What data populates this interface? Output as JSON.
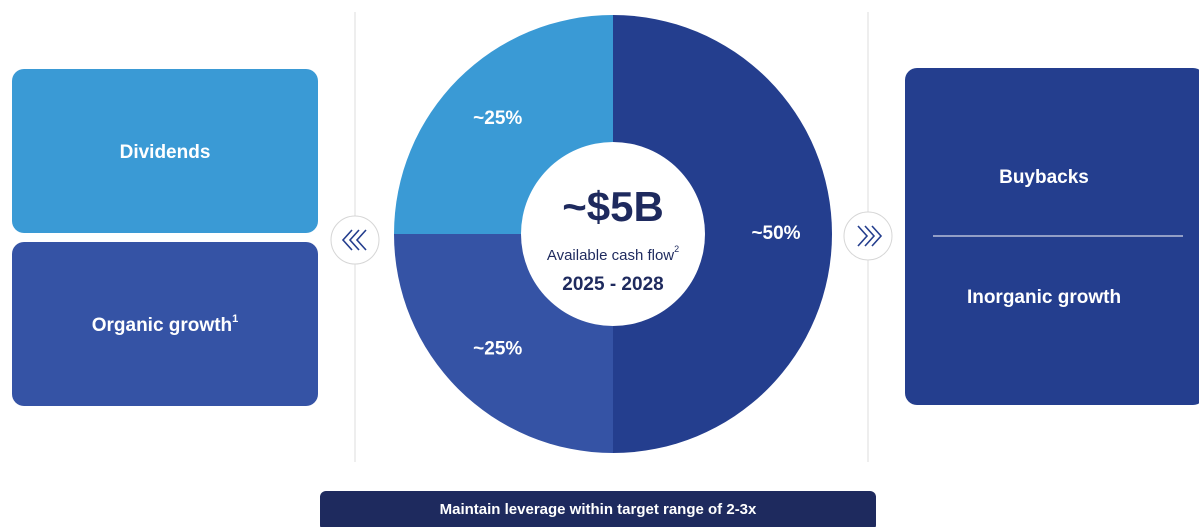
{
  "chart_data": {
    "type": "pie",
    "values": [
      50,
      25,
      25
    ],
    "value_labels": [
      "~50%",
      "~25%",
      "~25%"
    ],
    "colors": [
      "#243e8e",
      "#3553a5",
      "#3a9ad5"
    ],
    "center_value": "~$5B",
    "center_label": "Available cash flow",
    "center_label_note": "2",
    "center_period": "2025 - 2028",
    "boxes": [
      {
        "label": "Dividends",
        "color": "#3a9ad5"
      },
      {
        "label": "Organic growth",
        "note": "1",
        "color": "#3553a5"
      },
      {
        "labels": [
          "Buybacks",
          "Inorganic growth"
        ],
        "color": "#243e8e"
      }
    ],
    "footer": "Maintain leverage within target range of 2-3x"
  }
}
